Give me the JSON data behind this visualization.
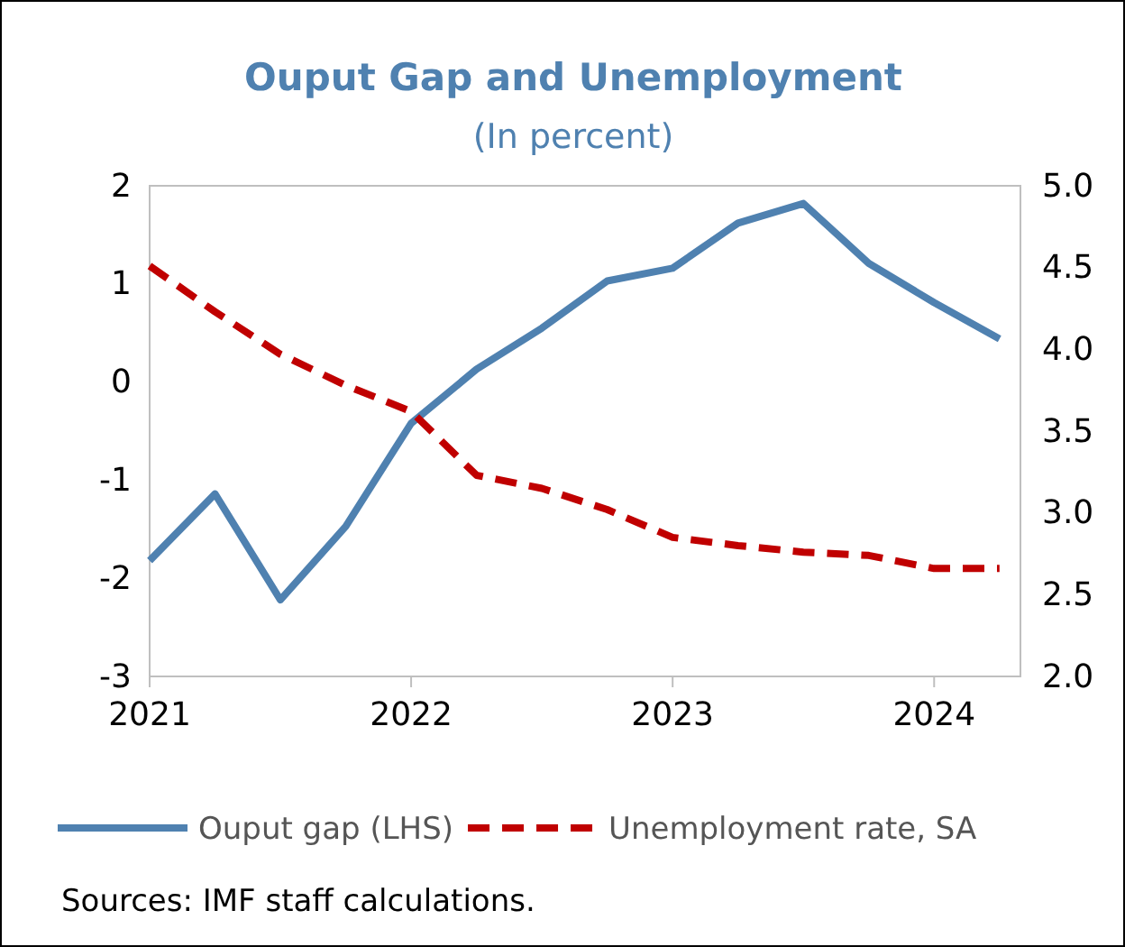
{
  "chart_data": {
    "type": "line",
    "title": "Ouput Gap and Unemployment",
    "subtitle": "(In percent)",
    "x": [
      2021,
      2021.25,
      2021.5,
      2021.75,
      2022,
      2022.25,
      2022.5,
      2022.75,
      2023,
      2023.25,
      2023.5,
      2023.75,
      2024,
      2024.25
    ],
    "xlim": [
      2021,
      2024.33
    ],
    "xticks": [
      2021,
      2022,
      2023,
      2024
    ],
    "ylim": [
      -3,
      2
    ],
    "yticks": [
      -3,
      -2,
      -1,
      0,
      1,
      2
    ],
    "y2lim": [
      2,
      5
    ],
    "y2ticks": [
      {
        "value": 2,
        "label": "2.0"
      },
      {
        "value": 2.5,
        "label": "2.5"
      },
      {
        "value": 3,
        "label": "3.0"
      },
      {
        "value": 3.5,
        "label": "3.5"
      },
      {
        "value": 4,
        "label": "4.0"
      },
      {
        "value": 4.5,
        "label": "4.5"
      },
      {
        "value": 5,
        "label": "5.0"
      }
    ],
    "series": [
      {
        "name": "Ouput gap (LHS)",
        "color": "#4f81b0",
        "line_style": "solid",
        "values": [
          -1.82,
          -1.14,
          -2.22,
          -1.47,
          -0.42,
          0.13,
          0.55,
          1.03,
          1.16,
          1.62,
          1.82,
          1.21,
          0.81,
          0.44
        ]
      },
      {
        "name": "Unemployment rate, SA",
        "color": "#c00000",
        "line_style": "dashed",
        "axis": "y2",
        "values": [
          4.51,
          4.23,
          3.97,
          3.78,
          3.62,
          3.23,
          3.15,
          3.02,
          2.85,
          2.8,
          2.76,
          2.74,
          2.66,
          2.66
        ]
      }
    ],
    "grid": false,
    "legend": "bottom",
    "marker": "none",
    "annotations": [
      "Sources: IMF staff calculations."
    ]
  }
}
